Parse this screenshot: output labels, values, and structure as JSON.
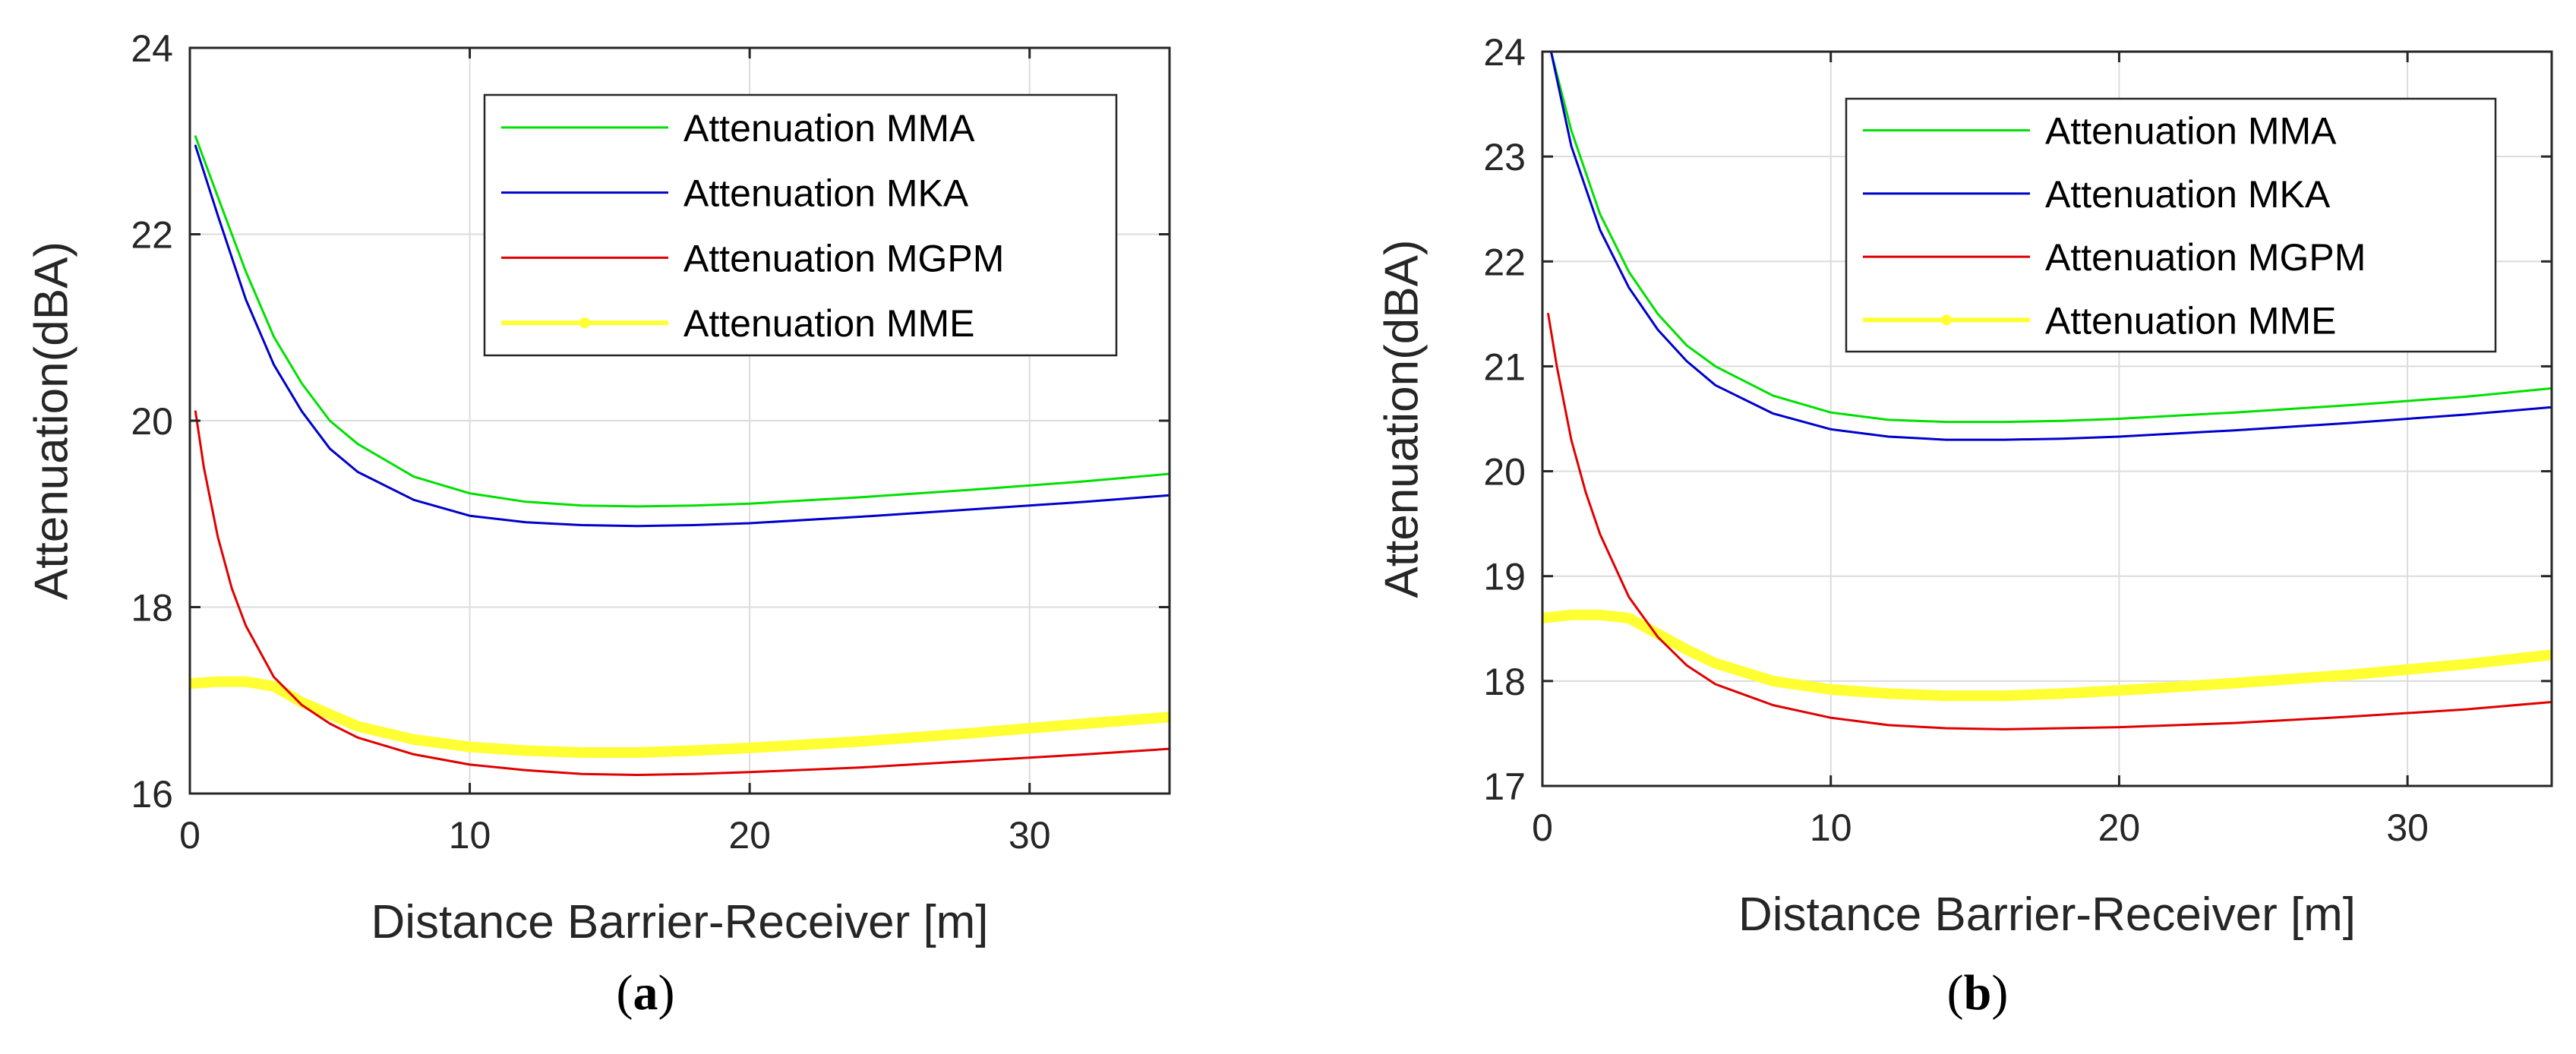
{
  "chart_data": [
    {
      "id": "a",
      "type": "line",
      "caption_letter": "a",
      "caption_open": "(",
      "caption_close": ")",
      "xlabel": "Distance Barrier-Receiver [m]",
      "ylabel": "Attenuation(dBA)",
      "xlim": [
        0,
        35
      ],
      "ylim": [
        16,
        24
      ],
      "xticks": [
        0,
        10,
        20,
        30
      ],
      "yticks": [
        16,
        18,
        20,
        22,
        24
      ],
      "grid": true,
      "legend_position": "top-right",
      "series": [
        {
          "name": "Attenuation MMA",
          "color": "#00e000",
          "x": [
            0.2,
            1,
            2,
            3,
            4,
            5,
            6,
            8,
            10,
            12,
            14,
            16,
            18,
            20,
            24,
            28,
            32,
            35
          ],
          "y": [
            23.05,
            22.4,
            21.6,
            20.9,
            20.4,
            20.0,
            19.75,
            19.4,
            19.22,
            19.13,
            19.09,
            19.08,
            19.09,
            19.11,
            19.18,
            19.26,
            19.35,
            19.43
          ]
        },
        {
          "name": "Attenuation MKA",
          "color": "#0000cc",
          "x": [
            0.2,
            1,
            2,
            3,
            4,
            5,
            6,
            8,
            10,
            12,
            14,
            16,
            18,
            20,
            24,
            28,
            32,
            35
          ],
          "y": [
            22.95,
            22.2,
            21.3,
            20.6,
            20.1,
            19.7,
            19.45,
            19.15,
            18.98,
            18.91,
            18.88,
            18.87,
            18.88,
            18.9,
            18.97,
            19.05,
            19.13,
            19.2
          ]
        },
        {
          "name": "Attenuation MGPM",
          "color": "#e00000",
          "x": [
            0.2,
            0.5,
            1,
            1.5,
            2,
            3,
            4,
            5,
            6,
            8,
            10,
            12,
            14,
            16,
            18,
            20,
            24,
            28,
            32,
            35
          ],
          "y": [
            20.1,
            19.5,
            18.75,
            18.2,
            17.8,
            17.25,
            16.95,
            16.75,
            16.6,
            16.42,
            16.31,
            16.25,
            16.21,
            16.2,
            16.21,
            16.23,
            16.28,
            16.35,
            16.42,
            16.48
          ]
        },
        {
          "name": "Attenuation MME",
          "color": "#ffff33",
          "thick": true,
          "x": [
            0,
            1,
            2,
            3,
            4,
            5,
            6,
            8,
            10,
            12,
            14,
            16,
            18,
            20,
            24,
            28,
            32,
            35
          ],
          "y": [
            17.18,
            17.2,
            17.2,
            17.15,
            16.98,
            16.85,
            16.72,
            16.58,
            16.5,
            16.46,
            16.44,
            16.44,
            16.46,
            16.49,
            16.56,
            16.65,
            16.75,
            16.82
          ]
        }
      ]
    },
    {
      "id": "b",
      "type": "line",
      "caption_letter": "b",
      "caption_open": "(",
      "caption_close": ")",
      "xlabel": "Distance Barrier-Receiver [m]",
      "ylabel": "Attenuation(dBA)",
      "xlim": [
        0,
        35
      ],
      "ylim": [
        17,
        24
      ],
      "xticks": [
        0,
        10,
        20,
        30
      ],
      "yticks": [
        17,
        18,
        19,
        20,
        21,
        22,
        23,
        24
      ],
      "grid": true,
      "legend_position": "top-right",
      "series": [
        {
          "name": "Attenuation MMA",
          "color": "#00e000",
          "x": [
            0.3,
            1,
            2,
            3,
            4,
            5,
            6,
            8,
            10,
            12,
            14,
            16,
            18,
            20,
            24,
            28,
            32,
            35
          ],
          "y": [
            24.0,
            23.25,
            22.45,
            21.9,
            21.5,
            21.2,
            21.0,
            20.72,
            20.56,
            20.49,
            20.47,
            20.47,
            20.48,
            20.5,
            20.56,
            20.63,
            20.71,
            20.79
          ]
        },
        {
          "name": "Attenuation MKA",
          "color": "#0000cc",
          "x": [
            0.3,
            1,
            2,
            3,
            4,
            5,
            6,
            8,
            10,
            12,
            14,
            16,
            18,
            20,
            24,
            28,
            32,
            35
          ],
          "y": [
            24.0,
            23.1,
            22.3,
            21.75,
            21.35,
            21.05,
            20.82,
            20.55,
            20.4,
            20.33,
            20.3,
            20.3,
            20.31,
            20.33,
            20.39,
            20.46,
            20.54,
            20.61
          ]
        },
        {
          "name": "Attenuation MGPM",
          "color": "#e00000",
          "x": [
            0.2,
            0.5,
            1,
            1.5,
            2,
            3,
            4,
            5,
            6,
            8,
            10,
            12,
            14,
            16,
            18,
            20,
            24,
            28,
            32,
            35
          ],
          "y": [
            21.5,
            21.0,
            20.3,
            19.8,
            19.4,
            18.8,
            18.42,
            18.15,
            17.97,
            17.77,
            17.65,
            17.58,
            17.55,
            17.54,
            17.55,
            17.56,
            17.6,
            17.66,
            17.73,
            17.8
          ]
        },
        {
          "name": "Attenuation MME",
          "color": "#ffff33",
          "thick": true,
          "x": [
            0,
            1,
            2,
            3,
            4,
            5,
            6,
            8,
            10,
            12,
            14,
            16,
            18,
            20,
            24,
            28,
            32,
            35
          ],
          "y": [
            18.6,
            18.63,
            18.63,
            18.6,
            18.45,
            18.3,
            18.17,
            18.0,
            17.92,
            17.88,
            17.86,
            17.86,
            17.88,
            17.91,
            17.98,
            18.06,
            18.16,
            18.25
          ]
        }
      ]
    }
  ]
}
